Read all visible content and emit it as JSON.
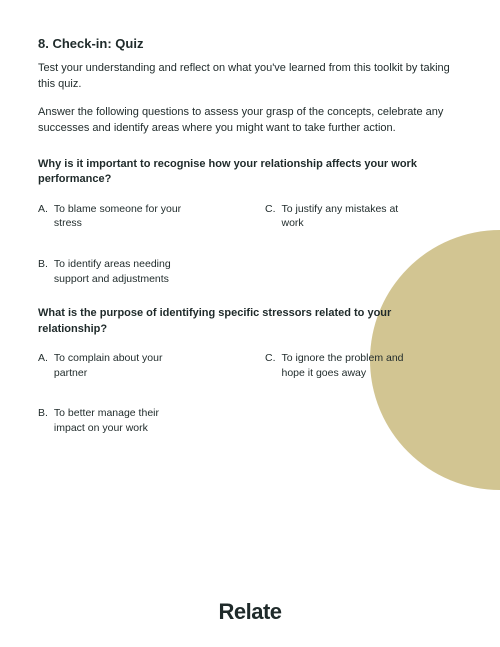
{
  "title": "8. Check-in: Quiz",
  "intro1": "Test your understanding and reflect on what you've learned from this toolkit by taking this quiz.",
  "intro2": "Answer the following questions to assess your grasp of the concepts, celebrate any successes and identify areas where you might want to take further action.",
  "q1": {
    "text": "Why is it important to recognise how your relationship affects your work performance?",
    "a": {
      "letter": "A.",
      "text": "To blame someone for your stress"
    },
    "b": {
      "letter": "B.",
      "text": "To identify areas needing support and adjustments"
    },
    "c": {
      "letter": "C.",
      "text": "To justify any mistakes at work"
    }
  },
  "q2": {
    "text": "What is the purpose of identifying specific stressors related to your relationship?",
    "a": {
      "letter": "A.",
      "text": "To complain about your partner"
    },
    "b": {
      "letter": "B.",
      "text": "To better manage their impact on your work"
    },
    "c": {
      "letter": "C.",
      "text": "To ignore the problem and hope it goes away"
    }
  },
  "brand": "Relate",
  "circle_color": "#d2c592"
}
